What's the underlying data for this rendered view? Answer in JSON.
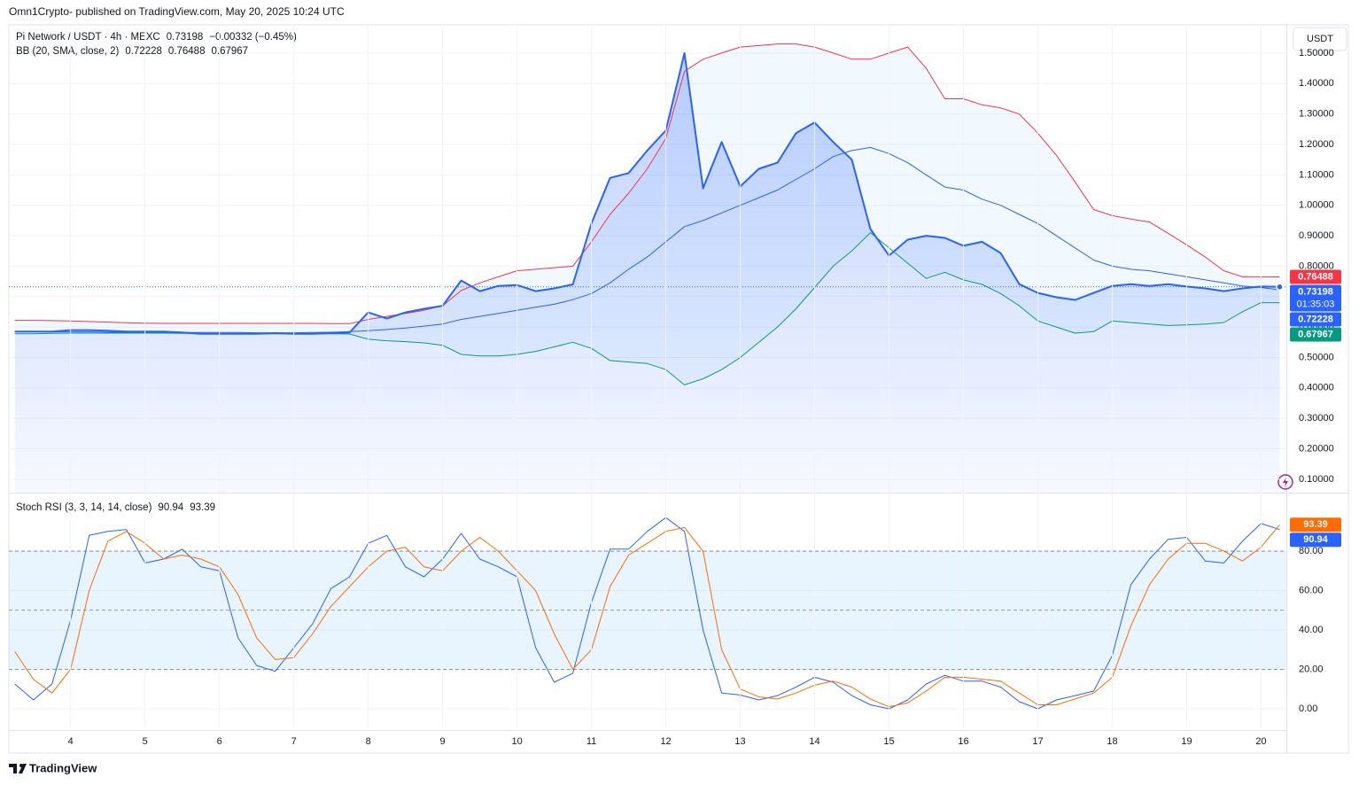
{
  "header": {
    "publisher": "Omn1Crypto- published on TradingView.com, May 20, 2025 10:24 UTC"
  },
  "currency": "USDT",
  "footer": "TradingView",
  "chart_data": [
    {
      "type": "line",
      "title": "Pi Network / USDT · 4h · MEXC",
      "change": "−0.00332 (−0.45%)",
      "indicator": "BB (20, SMA, close, 2)",
      "countdown": "01:35:03",
      "band_fill": "rgba(33,150,243,0.06)",
      "grid": true,
      "xlim": [
        3.17,
        20.34
      ],
      "ylim": [
        0.056,
        1.593
      ],
      "yticks": [
        {
          "value": 0.1,
          "label": "0.10000"
        },
        {
          "value": 0.2,
          "label": "0.20000"
        },
        {
          "value": 0.3,
          "label": "0.30000"
        },
        {
          "value": 0.4,
          "label": "0.40000"
        },
        {
          "value": 0.5,
          "label": "0.50000"
        },
        {
          "value": 0.6,
          "label": "0.60000"
        },
        {
          "value": 0.7,
          "label": "0.70000"
        },
        {
          "value": 0.8,
          "label": "0.80000"
        },
        {
          "value": 0.9,
          "label": "0.90000"
        },
        {
          "value": 1.0,
          "label": "1.00000"
        },
        {
          "value": 1.1,
          "label": "1.10000"
        },
        {
          "value": 1.2,
          "label": "1.20000"
        },
        {
          "value": 1.3,
          "label": "1.30000"
        },
        {
          "value": 1.4,
          "label": "1.40000"
        },
        {
          "value": 1.5,
          "label": "1.50000"
        }
      ],
      "x": [
        3.25,
        3.5,
        3.75,
        4,
        4.25,
        4.5,
        4.75,
        5,
        5.25,
        5.5,
        5.75,
        6,
        6.25,
        6.5,
        6.75,
        7,
        7.25,
        7.5,
        7.75,
        8,
        8.25,
        8.5,
        8.75,
        9,
        9.25,
        9.5,
        9.75,
        10,
        10.25,
        10.5,
        10.75,
        11,
        11.25,
        11.5,
        11.75,
        12,
        12.25,
        12.5,
        12.75,
        13,
        13.25,
        13.5,
        13.75,
        14,
        14.25,
        14.5,
        14.75,
        15,
        15.25,
        15.5,
        15.75,
        16,
        16.25,
        16.5,
        16.75,
        17,
        17.25,
        17.5,
        17.75,
        18,
        18.25,
        18.5,
        18.75,
        19,
        19.25,
        19.5,
        19.75,
        20,
        20.25
      ],
      "series": [
        {
          "color": "#2962ff",
          "width": 2,
          "fill": "area",
          "label": "0.73198",
          "values": [
            0.585,
            0.585,
            0.585,
            0.59,
            0.59,
            0.588,
            0.585,
            0.585,
            0.585,
            0.582,
            0.578,
            0.578,
            0.578,
            0.578,
            0.58,
            0.578,
            0.578,
            0.58,
            0.582,
            0.648,
            0.628,
            0.648,
            0.66,
            0.67,
            0.753,
            0.718,
            0.735,
            0.738,
            0.718,
            0.727,
            0.74,
            0.94,
            1.09,
            1.106,
            1.18,
            1.246,
            1.5,
            1.056,
            1.208,
            1.062,
            1.12,
            1.14,
            1.237,
            1.272,
            1.208,
            1.15,
            0.922,
            0.835,
            0.887,
            0.9,
            0.893,
            0.867,
            0.88,
            0.843,
            0.741,
            0.712,
            0.698,
            0.689,
            0.712,
            0.735,
            0.741,
            0.735,
            0.741,
            0.733,
            0.727,
            0.718,
            0.727,
            0.733,
            0.73198
          ]
        },
        {
          "color": "#f23645",
          "width": 1,
          "label": "0.76488",
          "values": [
            0.622,
            0.622,
            0.621,
            0.62,
            0.618,
            0.616,
            0.614,
            0.613,
            0.612,
            0.612,
            0.612,
            0.612,
            0.612,
            0.612,
            0.612,
            0.612,
            0.612,
            0.611,
            0.611,
            0.625,
            0.635,
            0.645,
            0.655,
            0.67,
            0.72,
            0.745,
            0.765,
            0.785,
            0.79,
            0.795,
            0.8,
            0.88,
            0.97,
            1.04,
            1.12,
            1.22,
            1.44,
            1.48,
            1.5,
            1.52,
            1.525,
            1.53,
            1.53,
            1.52,
            1.5,
            1.48,
            1.48,
            1.5,
            1.52,
            1.45,
            1.35,
            1.35,
            1.33,
            1.32,
            1.3,
            1.237,
            1.164,
            1.077,
            0.986,
            0.966,
            0.955,
            0.945,
            0.908,
            0.87,
            0.83,
            0.785,
            0.765,
            0.765,
            0.76488
          ]
        },
        {
          "color": "#2962ff",
          "width": 1,
          "label": "0.72228",
          "values": [
            0.585,
            0.585,
            0.584,
            0.584,
            0.584,
            0.583,
            0.583,
            0.583,
            0.582,
            0.582,
            0.582,
            0.582,
            0.582,
            0.581,
            0.581,
            0.581,
            0.582,
            0.583,
            0.585,
            0.588,
            0.592,
            0.597,
            0.603,
            0.61,
            0.625,
            0.635,
            0.645,
            0.655,
            0.665,
            0.675,
            0.69,
            0.71,
            0.745,
            0.79,
            0.83,
            0.88,
            0.93,
            0.95,
            0.975,
            1.0,
            1.025,
            1.05,
            1.085,
            1.12,
            1.16,
            1.18,
            1.19,
            1.17,
            1.14,
            1.1,
            1.06,
            1.05,
            1.02,
            1.0,
            0.97,
            0.94,
            0.9,
            0.86,
            0.82,
            0.8,
            0.79,
            0.785,
            0.775,
            0.765,
            0.755,
            0.745,
            0.735,
            0.73,
            0.72228
          ]
        },
        {
          "color": "#089981",
          "width": 1,
          "label": "0.67967",
          "values": [
            0.578,
            0.578,
            0.579,
            0.58,
            0.58,
            0.58,
            0.58,
            0.58,
            0.58,
            0.579,
            0.579,
            0.578,
            0.578,
            0.578,
            0.578,
            0.578,
            0.578,
            0.578,
            0.577,
            0.56,
            0.555,
            0.552,
            0.548,
            0.54,
            0.51,
            0.505,
            0.505,
            0.51,
            0.52,
            0.535,
            0.55,
            0.53,
            0.49,
            0.485,
            0.48,
            0.46,
            0.41,
            0.43,
            0.46,
            0.5,
            0.55,
            0.6,
            0.66,
            0.73,
            0.8,
            0.85,
            0.91,
            0.86,
            0.81,
            0.76,
            0.78,
            0.755,
            0.74,
            0.71,
            0.67,
            0.62,
            0.6,
            0.58,
            0.585,
            0.62,
            0.615,
            0.61,
            0.605,
            0.607,
            0.61,
            0.615,
            0.65,
            0.68,
            0.67967
          ]
        }
      ]
    },
    {
      "type": "line",
      "title": "Stoch RSI (3, 3, 14, 14, close)",
      "levels": [
        20,
        50,
        80
      ],
      "level_fill": "rgba(33,150,243,0.1)",
      "xlim": [
        3.17,
        20.34
      ],
      "xticks": [
        4,
        5,
        6,
        7,
        8,
        9,
        10,
        11,
        12,
        13,
        14,
        15,
        16,
        17,
        18,
        19,
        20
      ],
      "ylim": [
        -9.9,
        108.8
      ],
      "yticks": [
        {
          "value": 0,
          "label": "0.00"
        },
        {
          "value": 20,
          "label": "20.00"
        },
        {
          "value": 40,
          "label": "40.00"
        },
        {
          "value": 60,
          "label": "60.00"
        },
        {
          "value": 80,
          "label": "80.00"
        }
      ],
      "x": [
        3.25,
        3.5,
        3.75,
        4,
        4.25,
        4.5,
        4.75,
        5,
        5.25,
        5.5,
        5.75,
        6,
        6.25,
        6.5,
        6.75,
        7,
        7.25,
        7.5,
        7.75,
        8,
        8.25,
        8.5,
        8.75,
        9,
        9.25,
        9.5,
        9.75,
        10,
        10.25,
        10.5,
        10.75,
        11,
        11.25,
        11.5,
        11.75,
        12,
        12.25,
        12.5,
        12.75,
        13,
        13.25,
        13.5,
        13.75,
        14,
        14.25,
        14.5,
        14.75,
        15,
        15.25,
        15.5,
        15.75,
        16,
        16.25,
        16.5,
        16.75,
        17,
        17.25,
        17.5,
        17.75,
        18,
        18.25,
        18.5,
        18.75,
        19,
        19.25,
        19.5,
        19.75,
        20,
        20.25
      ],
      "series": [
        {
          "color": "#2962ff",
          "width": 1,
          "label": "90.94",
          "values": [
            12.6,
            4.5,
            12.6,
            45,
            88,
            90,
            91,
            74,
            76,
            81,
            72,
            70,
            36,
            22,
            19,
            31,
            43,
            61,
            67,
            84,
            88,
            72,
            67,
            76,
            89,
            76,
            72,
            67,
            31,
            13.5,
            18,
            54,
            81,
            81,
            90,
            97,
            90,
            40,
            8,
            7,
            4.5,
            6.7,
            11,
            16,
            13.5,
            6.7,
            2,
            0,
            4.5,
            12.6,
            17,
            14,
            14,
            11,
            3.6,
            0,
            4.5,
            6.7,
            9,
            27,
            63,
            76,
            86,
            87,
            75,
            74,
            85,
            94,
            90.94
          ]
        },
        {
          "color": "#ff6d00",
          "width": 1,
          "label": "93.39",
          "values": [
            29,
            15,
            8,
            20,
            60,
            85,
            90,
            84,
            76,
            78,
            76,
            72,
            58,
            36,
            25,
            26,
            38,
            52,
            62,
            72,
            80,
            82,
            72,
            70,
            80,
            87,
            80,
            70,
            60,
            38,
            20,
            30,
            62,
            78,
            84,
            90,
            92,
            80,
            30,
            10,
            6,
            5,
            8,
            12,
            14,
            11,
            5,
            1,
            3,
            9,
            16,
            16,
            15,
            14,
            8,
            2,
            2,
            5,
            8,
            16,
            42,
            63,
            76,
            84,
            84,
            80,
            75,
            82,
            93.39
          ]
        }
      ]
    }
  ]
}
